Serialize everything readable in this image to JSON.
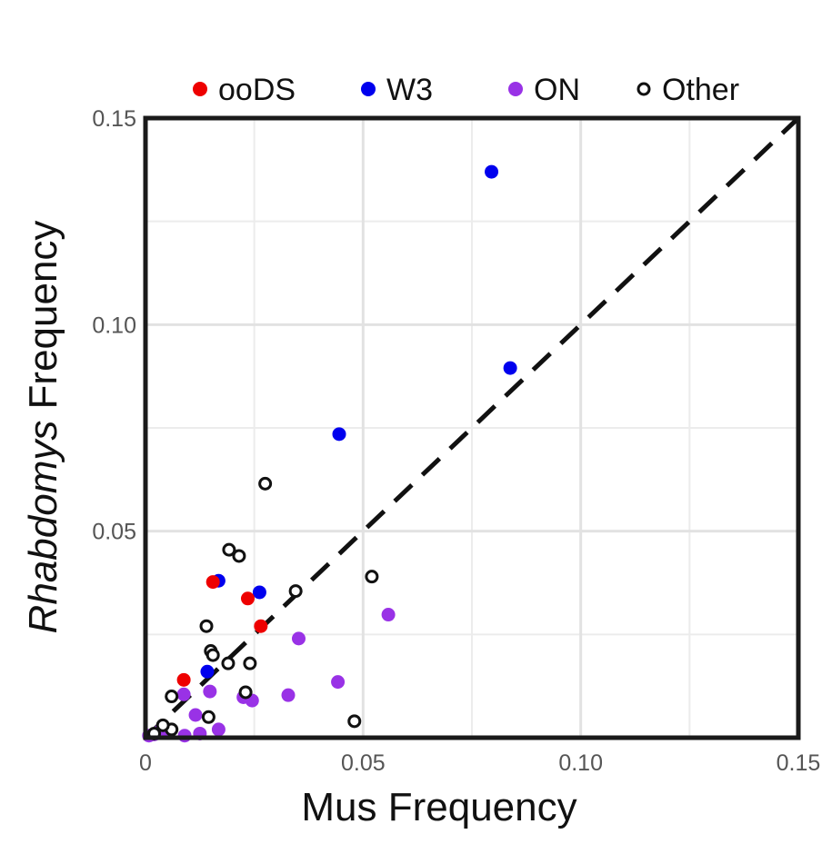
{
  "chart_data": {
    "type": "scatter",
    "xlabel": "Mus Frequency",
    "ylabel_italic": "Rhabdomys",
    "ylabel_rest": " Frequency",
    "xlim": [
      0,
      0.15
    ],
    "ylim": [
      0,
      0.15
    ],
    "x_ticks": [
      {
        "value": 0,
        "label": "0"
      },
      {
        "value": 0.05,
        "label": "0.05"
      },
      {
        "value": 0.1,
        "label": "0.10"
      },
      {
        "value": 0.15,
        "label": "0.15"
      }
    ],
    "y_ticks": [
      {
        "value": 0.05,
        "label": "0.05"
      },
      {
        "value": 0.1,
        "label": "0.10"
      },
      {
        "value": 0.15,
        "label": "0.15"
      }
    ],
    "minor_grid": [
      0.025,
      0.075,
      0.125
    ],
    "grid": true,
    "legend_position": "top",
    "reference_line": {
      "style": "dashed",
      "from": [
        0,
        0
      ],
      "to": [
        0.15,
        0.15
      ],
      "color": "#111111"
    },
    "series": [
      {
        "name": "ooDS",
        "marker": "filled",
        "color": "#ee0000",
        "points": [
          [
            0.0155,
            0.0377
          ],
          [
            0.0235,
            0.0337
          ],
          [
            0.0265,
            0.027
          ],
          [
            0.0088,
            0.014
          ]
        ]
      },
      {
        "name": "W3",
        "marker": "filled",
        "color": "#0000ee",
        "points": [
          [
            0.0795,
            0.137
          ],
          [
            0.0838,
            0.0895
          ],
          [
            0.0445,
            0.0735
          ],
          [
            0.0262,
            0.0352
          ],
          [
            0.0168,
            0.038
          ],
          [
            0.0142,
            0.016
          ]
        ]
      },
      {
        "name": "ON",
        "marker": "filled",
        "color": "#9932e6",
        "points": [
          [
            0.0558,
            0.0298
          ],
          [
            0.0352,
            0.024
          ],
          [
            0.0442,
            0.0135
          ],
          [
            0.0328,
            0.0103
          ],
          [
            0.0225,
            0.0098
          ],
          [
            0.0245,
            0.009
          ],
          [
            0.0148,
            0.0112
          ],
          [
            0.0088,
            0.0105
          ],
          [
            0.0115,
            0.0055
          ],
          [
            0.0168,
            0.002
          ],
          [
            0.0125,
            0.001
          ],
          [
            0.0055,
            0.0015
          ],
          [
            0.0035,
            0.0018
          ],
          [
            0.002,
            0.0008
          ],
          [
            0.0008,
            0.0005
          ],
          [
            0.009,
            0.0005
          ]
        ]
      },
      {
        "name": "Other",
        "marker": "hollow",
        "color": "#111111",
        "points": [
          [
            0.0275,
            0.0615
          ],
          [
            0.0192,
            0.0455
          ],
          [
            0.0215,
            0.044
          ],
          [
            0.052,
            0.039
          ],
          [
            0.0345,
            0.0355
          ],
          [
            0.014,
            0.027
          ],
          [
            0.015,
            0.021
          ],
          [
            0.0155,
            0.02
          ],
          [
            0.019,
            0.018
          ],
          [
            0.024,
            0.018
          ],
          [
            0.006,
            0.01
          ],
          [
            0.023,
            0.011
          ],
          [
            0.0145,
            0.005
          ],
          [
            0.048,
            0.004
          ],
          [
            0.006,
            0.002
          ],
          [
            0.004,
            0.003
          ],
          [
            0.002,
            0.001
          ]
        ]
      }
    ]
  }
}
